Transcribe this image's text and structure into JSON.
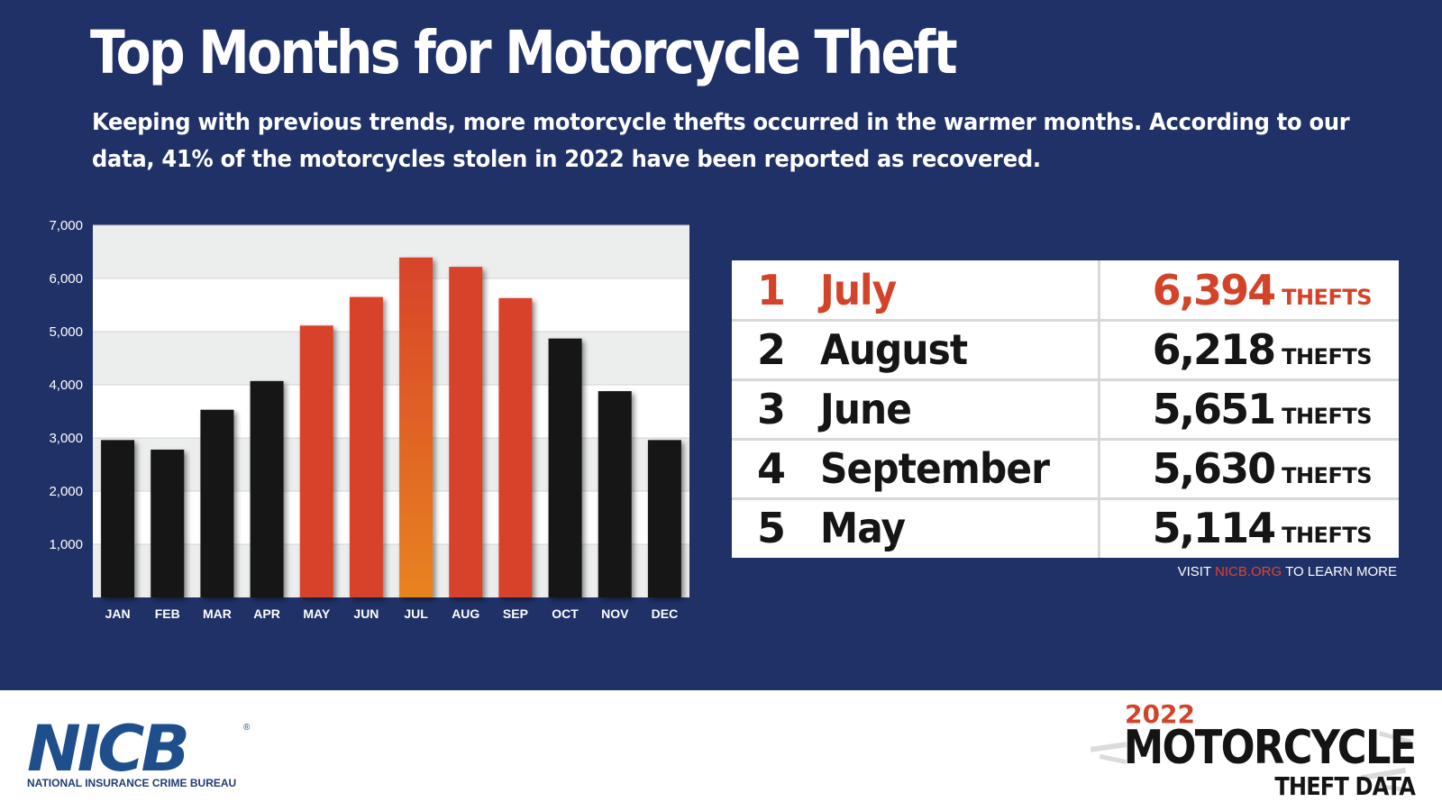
{
  "title": "Top Months for Motorcycle Theft",
  "subtitle_lines": [
    "Keeping with previous trends, more motorcycle thefts occurred in the warmer months. According to our",
    "data, 41% of the motorcycles stolen in 2022 have been reported as recovered."
  ],
  "chart_data": {
    "type": "bar",
    "categories": [
      "JAN",
      "FEB",
      "MAR",
      "APR",
      "MAY",
      "JUN",
      "JUL",
      "AUG",
      "SEP",
      "OCT",
      "NOV",
      "DEC"
    ],
    "values": [
      2960,
      2780,
      3530,
      4070,
      5114,
      5651,
      6394,
      6218,
      5630,
      4870,
      3880,
      2960
    ],
    "ylim": [
      0,
      7000
    ],
    "yticks": [
      1000,
      2000,
      3000,
      4000,
      5000,
      6000,
      7000
    ],
    "ytick_labels": [
      "1,000",
      "2,000",
      "3,000",
      "4,000",
      "5,000",
      "6,000",
      "7,000"
    ],
    "highlight": [
      "MAY",
      "JUN",
      "JUL",
      "AUG",
      "SEP"
    ],
    "colors": {
      "base": "#151518",
      "highlight": "#d8432a",
      "peak": "#e8831f",
      "band_alt": "#eceeee",
      "band": "#ffffff"
    },
    "grid": true,
    "title": "",
    "xlabel": "",
    "ylabel": ""
  },
  "ranking": [
    {
      "rank": "1",
      "month": "July",
      "value": "6,394",
      "unit": "THEFTS"
    },
    {
      "rank": "2",
      "month": "August",
      "value": "6,218",
      "unit": "THEFTS"
    },
    {
      "rank": "3",
      "month": "June",
      "value": "5,651",
      "unit": "THEFTS"
    },
    {
      "rank": "4",
      "month": "September",
      "value": "5,630",
      "unit": "THEFTS"
    },
    {
      "rank": "5",
      "month": "May",
      "value": "5,114",
      "unit": "THEFTS"
    }
  ],
  "visit": {
    "prefix": "VISIT ",
    "link": "NICB.ORG",
    "suffix": " TO LEARN MORE"
  },
  "logo": {
    "name": "NICB",
    "registered": "®",
    "subtitle": "NATIONAL INSURANCE CRIME BUREAU"
  },
  "brand": {
    "year": "2022",
    "line1": "MOTORCYCLE",
    "line2": "THEFT DATA"
  }
}
